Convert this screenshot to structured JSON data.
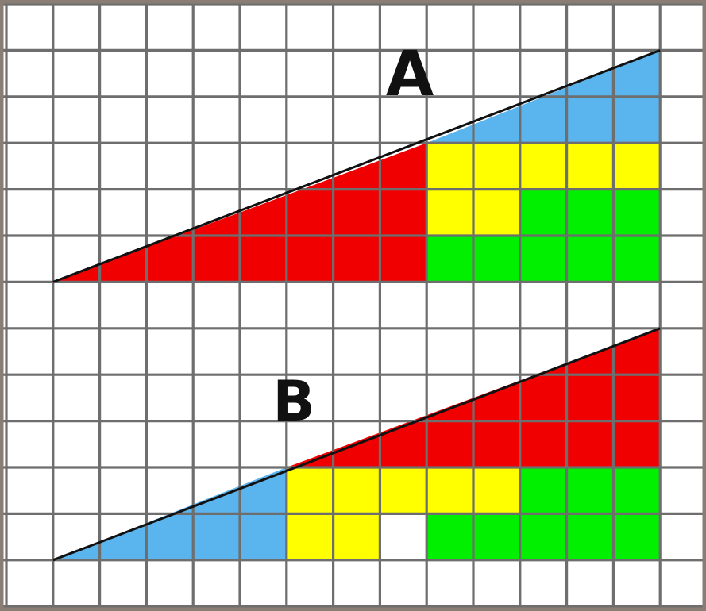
{
  "labels": {
    "figure_a": "A",
    "figure_b": "B"
  },
  "grid": {
    "columns": 15,
    "rows": 13
  },
  "colors": {
    "background": "#ffffff",
    "grid_line": "#6e6e6e",
    "border": "#8a7d74",
    "red": "#f00000",
    "blue": "#5ab4ee",
    "yellow": "#ffff00",
    "green": "#00f000",
    "outline": "#111111"
  },
  "figures": {
    "A": {
      "triangles": [
        {
          "name": "red-triangle",
          "color": "red",
          "points": [
            [
              1,
              6
            ],
            [
              9,
              6
            ],
            [
              9,
              3
            ]
          ]
        },
        {
          "name": "blue-triangle",
          "color": "blue",
          "points": [
            [
              9,
              3
            ],
            [
              14,
              3
            ],
            [
              14,
              1
            ]
          ]
        }
      ],
      "yellow_cells": [
        [
          9,
          3
        ],
        [
          10,
          3
        ],
        [
          11,
          3
        ],
        [
          12,
          3
        ],
        [
          13,
          3
        ],
        [
          9,
          4
        ],
        [
          10,
          4
        ]
      ],
      "green_cells": [
        [
          11,
          4
        ],
        [
          12,
          4
        ],
        [
          13,
          4
        ],
        [
          9,
          5
        ],
        [
          10,
          5
        ],
        [
          11,
          5
        ],
        [
          12,
          5
        ],
        [
          13,
          5
        ]
      ],
      "outline": [
        [
          1,
          6
        ],
        [
          14,
          1
        ]
      ]
    },
    "B": {
      "triangles": [
        {
          "name": "blue-triangle",
          "color": "blue",
          "points": [
            [
              1,
              12
            ],
            [
              6,
              12
            ],
            [
              6,
              10
            ]
          ]
        },
        {
          "name": "red-triangle",
          "color": "red",
          "points": [
            [
              6,
              10
            ],
            [
              14,
              10
            ],
            [
              14,
              7
            ]
          ]
        }
      ],
      "yellow_cells": [
        [
          6,
          10
        ],
        [
          7,
          10
        ],
        [
          8,
          10
        ],
        [
          9,
          10
        ],
        [
          10,
          10
        ],
        [
          6,
          11
        ],
        [
          7,
          11
        ]
      ],
      "green_cells": [
        [
          11,
          10
        ],
        [
          12,
          10
        ],
        [
          13,
          10
        ],
        [
          9,
          11
        ],
        [
          10,
          11
        ],
        [
          11,
          11
        ],
        [
          12,
          11
        ],
        [
          13,
          11
        ]
      ],
      "empty_cells": [
        [
          8,
          11
        ]
      ],
      "outline": [
        [
          1,
          12
        ],
        [
          14,
          7
        ]
      ]
    }
  }
}
